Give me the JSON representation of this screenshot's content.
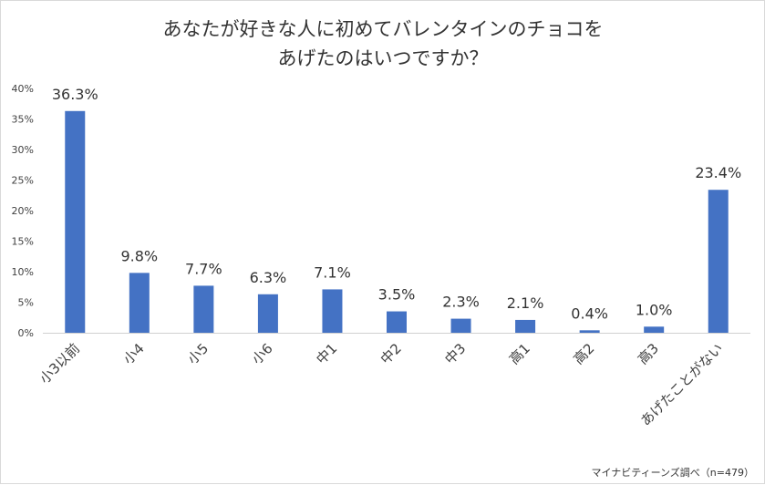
{
  "chart_data": {
    "type": "bar",
    "title_lines": [
      "あなたが好きな人に初めてバレンタインのチョコを",
      "あげたのはいつですか？"
    ],
    "categories": [
      "小3以前",
      "小4",
      "小5",
      "小6",
      "中1",
      "中2",
      "中3",
      "高1",
      "高2",
      "高3",
      "あげたことがない"
    ],
    "values": [
      36.3,
      9.8,
      7.7,
      6.3,
      7.1,
      3.5,
      2.3,
      2.1,
      0.4,
      1.0,
      23.4
    ],
    "value_labels": [
      "36.3%",
      "9.8%",
      "7.7%",
      "6.3%",
      "7.1%",
      "3.5%",
      "2.3%",
      "2.1%",
      "0.4%",
      "1.0%",
      "23.4%"
    ],
    "y_ticks": [
      0,
      5,
      10,
      15,
      20,
      25,
      30,
      35,
      40
    ],
    "y_tick_labels": [
      "0%",
      "5%",
      "10%",
      "15%",
      "20%",
      "25%",
      "30%",
      "35%",
      "40%"
    ],
    "ylim": [
      0,
      40
    ],
    "grid": false,
    "bar_color": "#4472c4",
    "xlabel": "",
    "ylabel": ""
  },
  "source_note": "マイナビティーンズ調べ（n=479）"
}
